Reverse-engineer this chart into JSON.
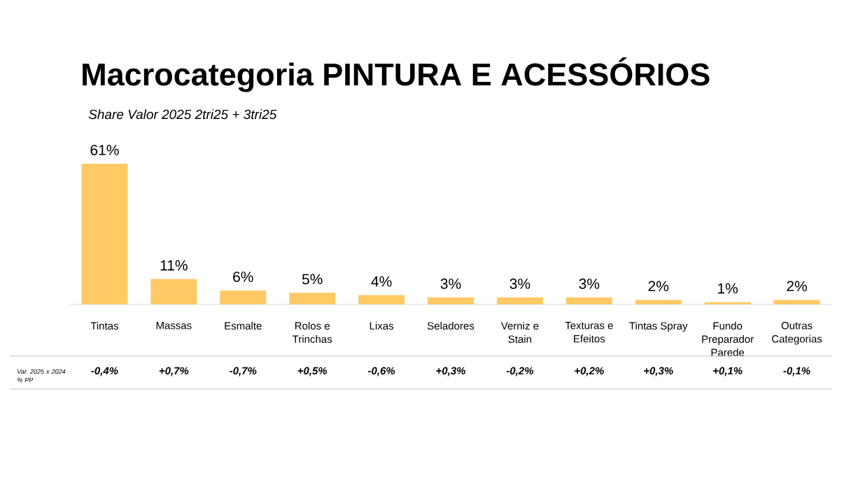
{
  "chart_data": {
    "type": "bar",
    "title": "Macrocategoria PINTURA E ACESSÓRIOS",
    "subtitle": "Share Valor 2025 2tri25 + 3tri25",
    "categories": [
      "Tintas",
      "Massas",
      "Esmalte",
      "Rolos e Trinchas",
      "Lixas",
      "Seladores",
      "Verniz e Stain",
      "Texturas e Efeitos",
      "Tintas Spray",
      "Fundo Preparador Parede",
      "Outras Categorias"
    ],
    "values": [
      61,
      11,
      6,
      5,
      4,
      3,
      3,
      3,
      2,
      1,
      2
    ],
    "color": "#FFC966",
    "value_labels": [
      "61%",
      "11%",
      "6%",
      "5%",
      "4%",
      "3%",
      "3%",
      "3%",
      "2%",
      "1%",
      "2%"
    ],
    "annotations": [
      "Var. 2025 x 2024 % PP",
      "-0,4%",
      "+0,7%",
      "-0,7%",
      "+0,5%",
      "-0,6%",
      "+0,3%",
      "-0,2%",
      "+0,2%",
      "+0,3%",
      "+0,1%",
      "-0,1%"
    ]
  }
}
